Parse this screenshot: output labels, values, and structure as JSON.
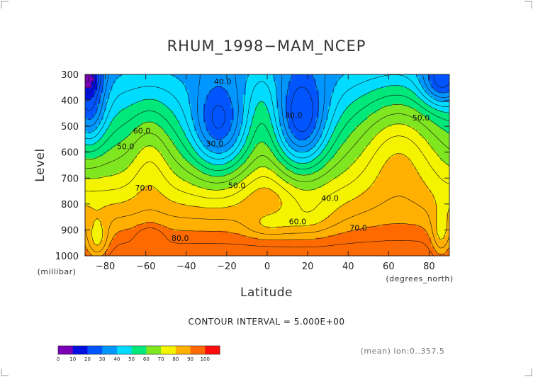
{
  "chart_data": {
    "type": "heatmap",
    "title": "RHUM_1998−MAM_NCEP",
    "xlabel": "Latitude",
    "ylabel": "Level",
    "x_unit": "(degrees_north)",
    "y_unit": "(millibar)",
    "x_ticks": [
      -80,
      -60,
      -40,
      -20,
      0,
      20,
      40,
      60,
      80
    ],
    "x_tick_labels": [
      "−80",
      "−60",
      "−40",
      "−20",
      "0",
      "20",
      "40",
      "60",
      "80"
    ],
    "y_ticks": [
      300,
      400,
      500,
      600,
      700,
      800,
      900,
      1000
    ],
    "y_tick_labels": [
      "300",
      "400",
      "500",
      "600",
      "700",
      "800",
      "900",
      "1000"
    ],
    "xlim": [
      -90,
      90
    ],
    "ylim": [
      1000,
      300
    ],
    "contour_interval_text": "CONTOUR INTERVAL = 5.000E+00",
    "mean_text": "(mean) lon:0..357.5",
    "contour_labels": [
      {
        "text": "40.0",
        "lat": -22,
        "level": 330
      },
      {
        "text": "30.0",
        "lat": 13,
        "level": 460
      },
      {
        "text": "30.0",
        "lat": -26,
        "level": 570
      },
      {
        "text": "50.0",
        "lat": 76,
        "level": 470
      },
      {
        "text": "60.0",
        "lat": -62,
        "level": 520
      },
      {
        "text": "50.0",
        "lat": -70,
        "level": 580
      },
      {
        "text": "50.0",
        "lat": -15,
        "level": 730
      },
      {
        "text": "70.0",
        "lat": -61,
        "level": 740
      },
      {
        "text": "40.0",
        "lat": 31,
        "level": 780
      },
      {
        "text": "60.0",
        "lat": 15,
        "level": 870
      },
      {
        "text": "70.0",
        "lat": 45,
        "level": 895
      },
      {
        "text": "80.0",
        "lat": -43,
        "level": 935
      }
    ],
    "colorbar": {
      "levels": [
        0,
        10,
        20,
        30,
        40,
        50,
        60,
        70,
        80,
        90,
        100
      ],
      "labels": [
        "0",
        "10",
        "20",
        "30",
        "40",
        "50",
        "60",
        "70",
        "80",
        "90",
        "100"
      ],
      "colors": [
        "#7a00b8",
        "#0010e0",
        "#0055ff",
        "#0096ff",
        "#00dcff",
        "#00e87a",
        "#7fe620",
        "#f4f400",
        "#ffb000",
        "#ff6a00",
        "#ff0d0d"
      ]
    },
    "grid": false
  }
}
